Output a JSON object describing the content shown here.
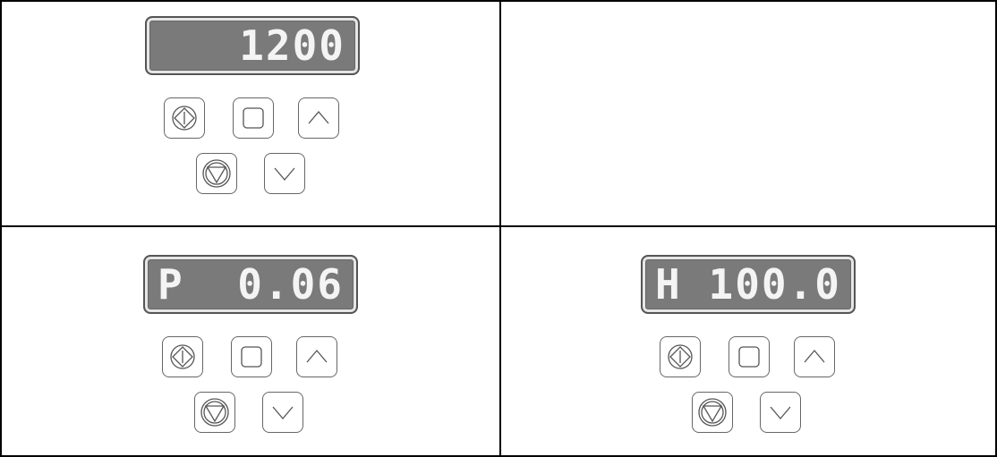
{
  "panels": [
    {
      "value": "1200"
    },
    {
      "mode": "P",
      "value": "0.06"
    },
    {
      "mode": "H",
      "value": "100.0"
    }
  ]
}
